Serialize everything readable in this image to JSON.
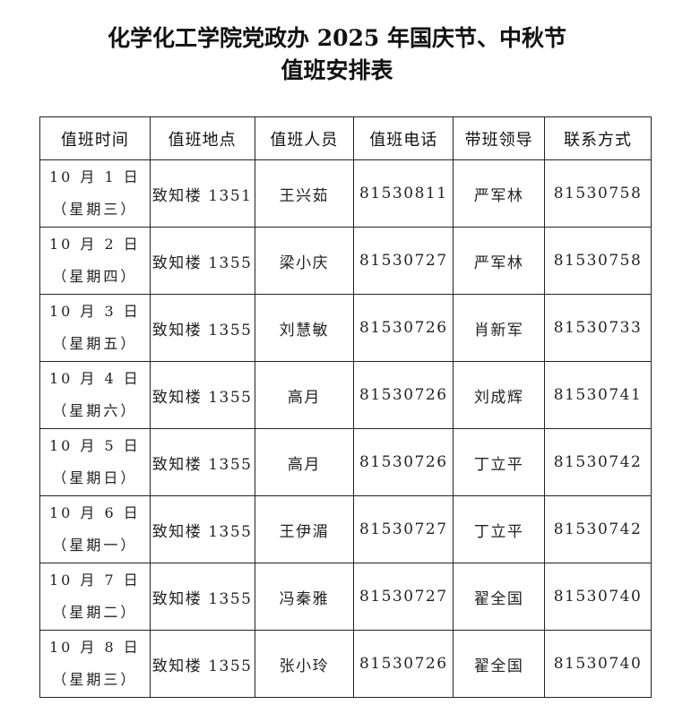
{
  "title": {
    "line1": "化学化工学院党政办 2025 年国庆节、中秋节",
    "line2": "值班安排表"
  },
  "table": {
    "headers": [
      "值班时间",
      "值班地点",
      "值班人员",
      "值班电话",
      "带班领导",
      "联系方式"
    ],
    "rows": [
      {
        "date": "10 月 1 日",
        "weekday": "（星期三）",
        "location": "致知楼 1351",
        "staff": "王兴茹",
        "phone": "81530811",
        "leader": "严军林",
        "contact": "81530758"
      },
      {
        "date": "10 月 2 日",
        "weekday": "（星期四）",
        "location": "致知楼 1355",
        "staff": "梁小庆",
        "phone": "81530727",
        "leader": "严军林",
        "contact": "81530758"
      },
      {
        "date": "10 月 3 日",
        "weekday": "（星期五）",
        "location": "致知楼 1355",
        "staff": "刘慧敏",
        "phone": "81530726",
        "leader": "肖新军",
        "contact": "81530733"
      },
      {
        "date": "10 月 4 日",
        "weekday": "（星期六）",
        "location": "致知楼 1355",
        "staff": "高月",
        "phone": "81530726",
        "leader": "刘成辉",
        "contact": "81530741"
      },
      {
        "date": "10 月 5 日",
        "weekday": "（星期日）",
        "location": "致知楼 1355",
        "staff": "高月",
        "phone": "81530726",
        "leader": "丁立平",
        "contact": "81530742"
      },
      {
        "date": "10 月 6 日",
        "weekday": "（星期一）",
        "location": "致知楼 1355",
        "staff": "王伊湄",
        "phone": "81530727",
        "leader": "丁立平",
        "contact": "81530742"
      },
      {
        "date": "10 月 7 日",
        "weekday": "（星期二）",
        "location": "致知楼 1355",
        "staff": "冯秦雅",
        "phone": "81530727",
        "leader": "翟全国",
        "contact": "81530740"
      },
      {
        "date": "10 月 8 日",
        "weekday": "（星期三）",
        "location": "致知楼 1355",
        "staff": "张小玲",
        "phone": "81530726",
        "leader": "翟全国",
        "contact": "81530740"
      }
    ]
  }
}
